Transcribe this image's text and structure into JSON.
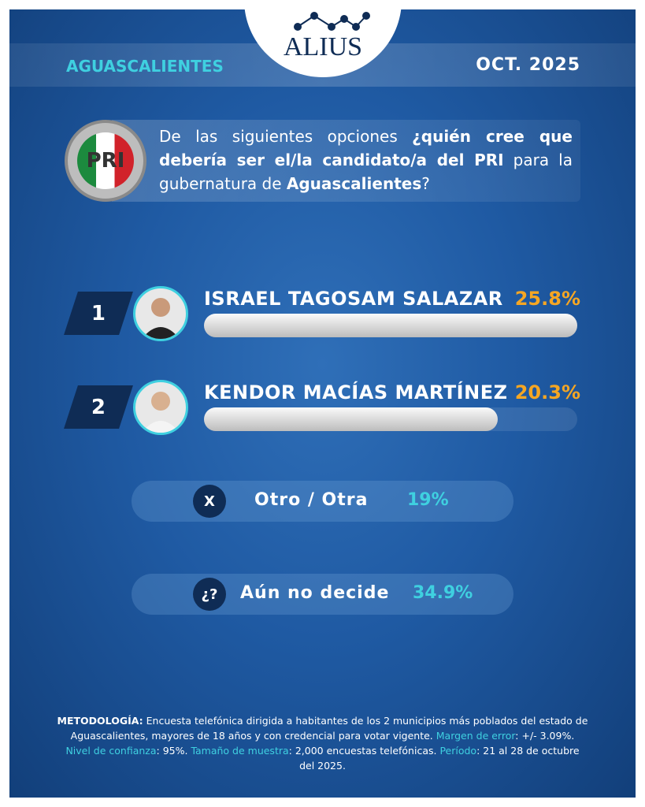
{
  "header": {
    "brand": "ALIUS",
    "state": "AGUASCALIENTES",
    "date": "OCT. 2025"
  },
  "question": {
    "party_logo": "PRI",
    "parts": [
      "De las siguientes opciones ",
      "¿quién cree que debería ser el/la candidato/a del ",
      "PRI",
      " para la gubernatura de ",
      "Aguascalientes",
      "?"
    ]
  },
  "chart_data": {
    "type": "bar",
    "orientation": "horizontal",
    "categories": [
      "ISRAEL TAGOSAM SALAZAR",
      "KENDOR MACÍAS MARTÍNEZ",
      "Otro / Otra",
      "Aún no decide"
    ],
    "values": [
      25.8,
      20.3,
      19,
      34.9
    ],
    "labels": [
      "25.8%",
      "20.3%",
      "19%",
      "34.9%"
    ],
    "ranks": [
      "1",
      "2"
    ],
    "other_icons": [
      "X",
      "¿?"
    ],
    "unit": "%",
    "colors": {
      "bar": "#e0e0e0",
      "candidate_pct": "#f5a623",
      "other_pct": "#3fd0e0",
      "accent": "#3fd0e0",
      "background": "#1f5aa3"
    }
  },
  "methodology": {
    "t1": "METODOLOGÍA:",
    "t2": " Encuesta telefónica dirigida a habitantes de los 2 municipios más poblados del estado de Aguascalientes, mayores de 18 años y con credencial para votar vigente. ",
    "t3": "Margen de error",
    "t4": ": +/- 3.09%. ",
    "t5": "Nivel de confianza",
    "t6": ": 95%. ",
    "t7": "Tamaño de muestra",
    "t8": ": 2,000 encuestas telefónicas. ",
    "t9": "Período",
    "t10": ": 21 al 28 de octubre del 2025."
  }
}
